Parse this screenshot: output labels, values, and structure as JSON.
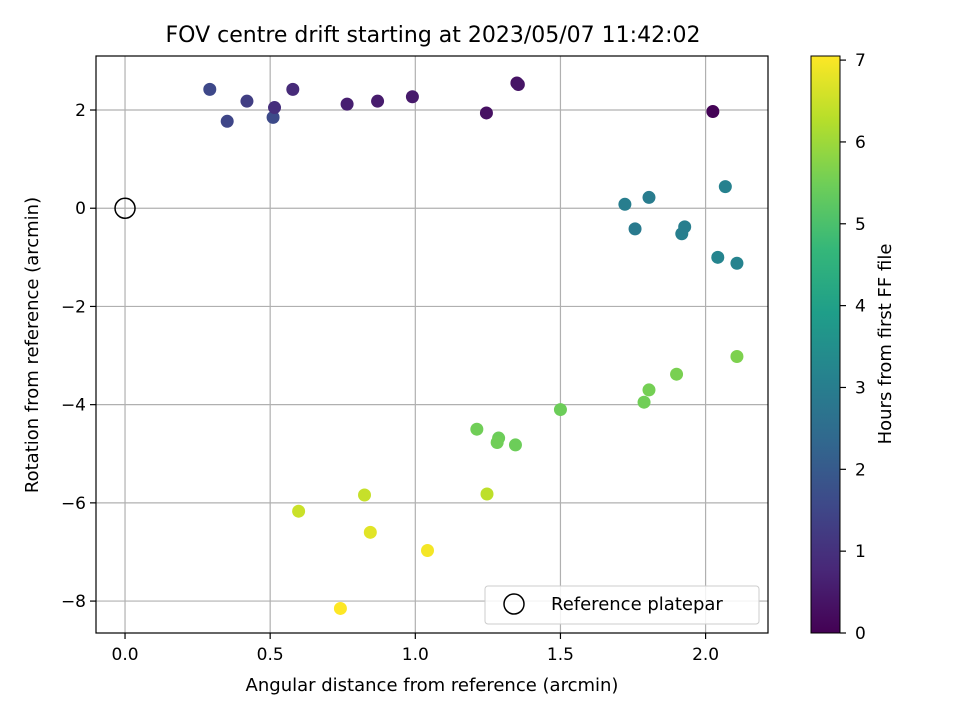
{
  "chart_data": {
    "type": "scatter",
    "title": "FOV centre drift starting at 2023/05/07 11:42:02",
    "xlabel": "Angular distance from reference (arcmin)",
    "ylabel": "Rotation from reference (arcmin)",
    "xlim": [
      -0.1,
      2.215
    ],
    "ylim": [
      -8.65,
      3.1
    ],
    "xticks": [
      0.0,
      0.5,
      1.0,
      1.5,
      2.0
    ],
    "xtick_labels": [
      "0.0",
      "0.5",
      "1.0",
      "1.5",
      "2.0"
    ],
    "yticks": [
      -8,
      -6,
      -4,
      -2,
      0,
      2
    ],
    "ytick_labels": [
      "−8",
      "−6",
      "−4",
      "−2",
      "0",
      "2"
    ],
    "grid": true,
    "legend": {
      "placement": "lower-right",
      "entries": [
        "Reference platepar"
      ]
    },
    "reference_point": {
      "name": "Reference platepar",
      "x": 0.0,
      "y": 0.0,
      "marker": "open-circle"
    },
    "colorbar": {
      "label": "Hours from first FF file",
      "colormap": "viridis",
      "range": [
        0,
        7.05
      ],
      "ticks": [
        0,
        1,
        2,
        3,
        4,
        5,
        6,
        7
      ],
      "tick_labels": [
        "0",
        "1",
        "2",
        "3",
        "4",
        "5",
        "6",
        "7"
      ]
    },
    "colormap_stops": [
      "#440154",
      "#482878",
      "#3e4989",
      "#31688e",
      "#26828e",
      "#1f9e89",
      "#35b779",
      "#6ece58",
      "#b5de2b",
      "#fde725"
    ],
    "points": [
      {
        "x": 0.292,
        "y": 2.42,
        "c": 1.55
      },
      {
        "x": 0.352,
        "y": 1.77,
        "c": 1.5
      },
      {
        "x": 0.42,
        "y": 2.18,
        "c": 1.3
      },
      {
        "x": 0.51,
        "y": 1.85,
        "c": 1.6
      },
      {
        "x": 0.515,
        "y": 2.05,
        "c": 0.95
      },
      {
        "x": 0.578,
        "y": 2.42,
        "c": 0.85
      },
      {
        "x": 0.765,
        "y": 2.12,
        "c": 0.6
      },
      {
        "x": 0.87,
        "y": 2.18,
        "c": 0.55
      },
      {
        "x": 0.99,
        "y": 2.27,
        "c": 0.5
      },
      {
        "x": 1.245,
        "y": 1.94,
        "c": 0.3
      },
      {
        "x": 1.35,
        "y": 2.55,
        "c": 0.35
      },
      {
        "x": 1.355,
        "y": 2.52,
        "c": 0.4
      },
      {
        "x": 2.025,
        "y": 1.97,
        "c": 0.05
      },
      {
        "x": 1.722,
        "y": 0.08,
        "c": 3.0
      },
      {
        "x": 1.757,
        "y": -0.42,
        "c": 2.9
      },
      {
        "x": 1.805,
        "y": 0.22,
        "c": 2.95
      },
      {
        "x": 1.918,
        "y": -0.52,
        "c": 3.05
      },
      {
        "x": 1.928,
        "y": -0.38,
        "c": 3.0
      },
      {
        "x": 2.068,
        "y": 0.44,
        "c": 3.1
      },
      {
        "x": 2.042,
        "y": -1.0,
        "c": 3.2
      },
      {
        "x": 2.108,
        "y": -1.12,
        "c": 3.15
      },
      {
        "x": 2.108,
        "y": -3.02,
        "c": 5.65
      },
      {
        "x": 1.9,
        "y": -3.38,
        "c": 5.6
      },
      {
        "x": 1.805,
        "y": -3.7,
        "c": 5.55
      },
      {
        "x": 1.788,
        "y": -3.95,
        "c": 5.5
      },
      {
        "x": 1.5,
        "y": -4.1,
        "c": 5.45
      },
      {
        "x": 1.212,
        "y": -4.5,
        "c": 5.5
      },
      {
        "x": 1.287,
        "y": -4.68,
        "c": 5.45
      },
      {
        "x": 1.282,
        "y": -4.77,
        "c": 5.5
      },
      {
        "x": 1.345,
        "y": -4.82,
        "c": 5.45
      },
      {
        "x": 1.247,
        "y": -5.82,
        "c": 6.35
      },
      {
        "x": 0.825,
        "y": -5.84,
        "c": 6.45
      },
      {
        "x": 0.598,
        "y": -6.17,
        "c": 6.5
      },
      {
        "x": 0.845,
        "y": -6.6,
        "c": 6.75
      },
      {
        "x": 1.042,
        "y": -6.97,
        "c": 6.95
      },
      {
        "x": 0.742,
        "y": -8.15,
        "c": 7.05
      }
    ]
  }
}
